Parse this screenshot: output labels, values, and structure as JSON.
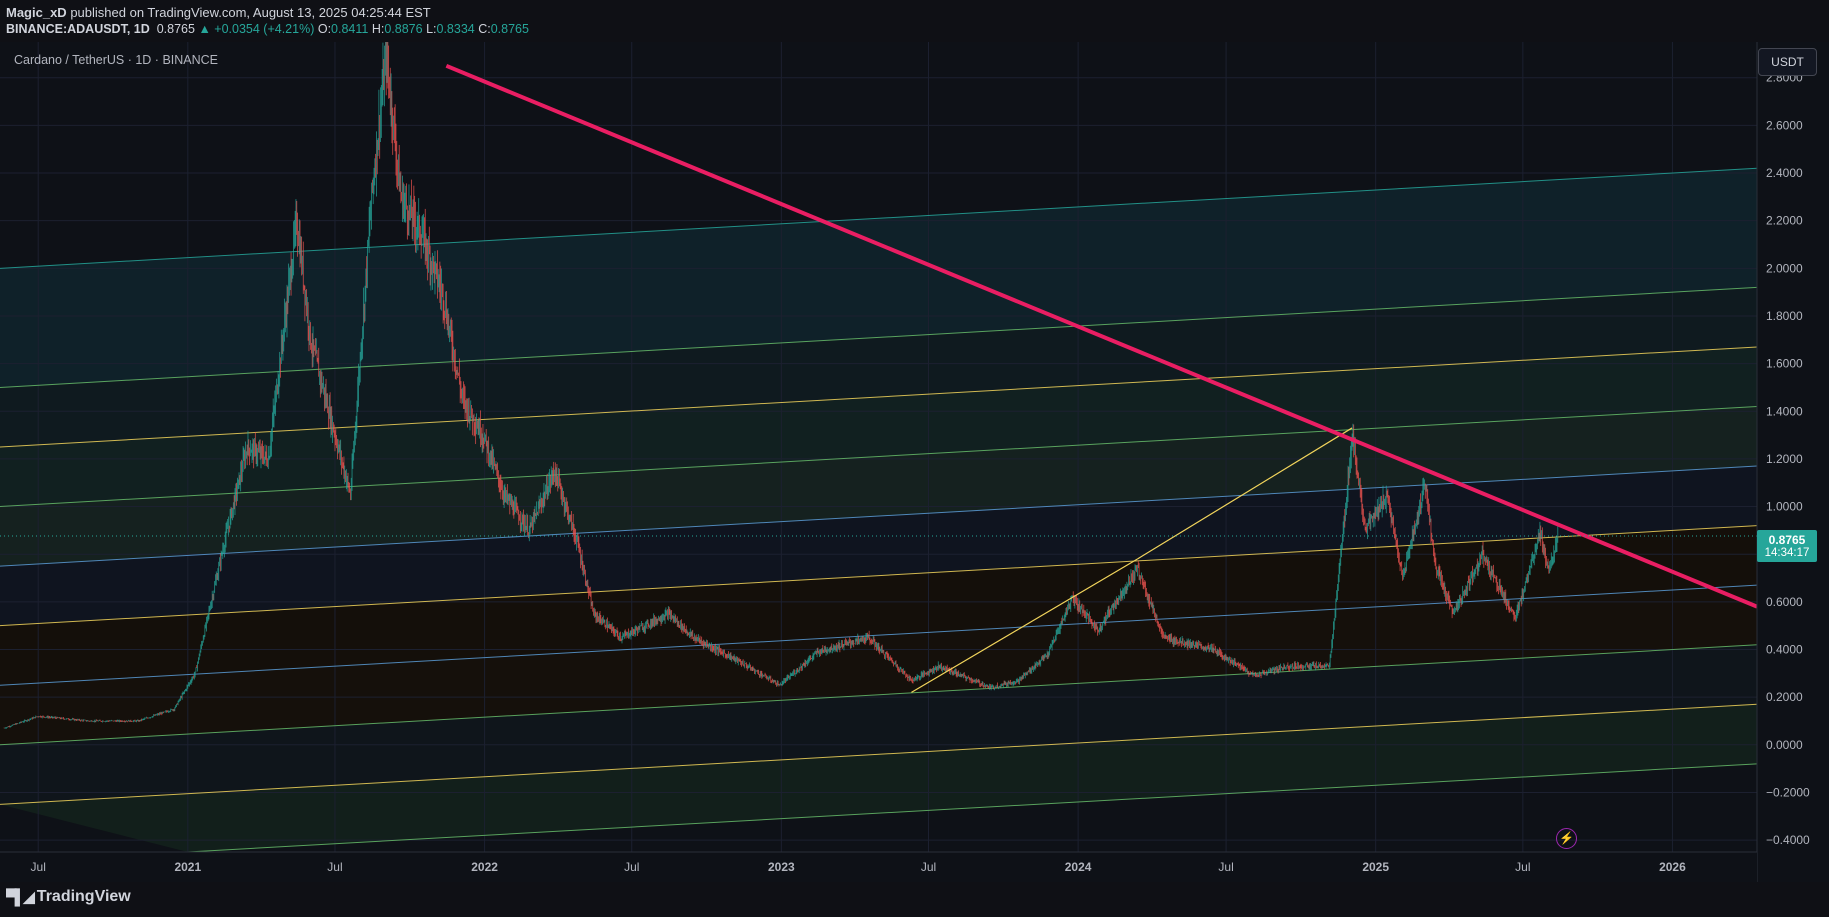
{
  "header": {
    "author": "Magic_xD",
    "published_text": "published on TradingView.com, August 13, 2025 04:25:44 EST",
    "symbol": "BINANCE:ADAUSDT, 1D",
    "last": "0.8765",
    "change": "▲ +0.0354 (+4.21%)",
    "o_label": "O:",
    "o_val": "0.8411",
    "h_label": "H:",
    "h_val": "0.8876",
    "l_label": "L:",
    "l_val": "0.8334",
    "c_label": "C:",
    "c_val": "0.8765"
  },
  "pair_title": "Cardano / TetherUS · 1D · BINANCE",
  "currency": "USDT",
  "price_tag": {
    "price": "0.8765",
    "countdown": "14:34:17"
  },
  "footer": {
    "logo_text": "TradingView"
  },
  "icons": {
    "alert": "lightning-icon",
    "logo": "tradingview-logo-icon"
  },
  "colors": {
    "up": "#26a69a",
    "down": "#ef5350",
    "downtrend": "#e91e63",
    "fib_yellow": "#f2d55c",
    "fib_blue": "#5b9bd5",
    "fib_green": "#66bb6a",
    "fib_teal": "#26a69a"
  },
  "chart_data": {
    "type": "candlestick",
    "x_range": [
      "2020-05-15",
      "2026-04-15"
    ],
    "x_ticks": [
      {
        "date": "2020-07-01",
        "label": "Jul"
      },
      {
        "date": "2021-01-01",
        "label": "2021"
      },
      {
        "date": "2021-07-01",
        "label": "Jul"
      },
      {
        "date": "2022-01-01",
        "label": "2022"
      },
      {
        "date": "2022-07-01",
        "label": "Jul"
      },
      {
        "date": "2023-01-01",
        "label": "2023"
      },
      {
        "date": "2023-07-01",
        "label": "Jul"
      },
      {
        "date": "2024-01-01",
        "label": "2024"
      },
      {
        "date": "2024-07-01",
        "label": "Jul"
      },
      {
        "date": "2025-01-01",
        "label": "2025"
      },
      {
        "date": "2025-07-01",
        "label": "Jul"
      },
      {
        "date": "2026-01-01",
        "label": "2026"
      }
    ],
    "y_range": [
      -0.45,
      2.95
    ],
    "y_ticks": [
      {
        "v": 2.8,
        "label": "2.8000"
      },
      {
        "v": 2.6,
        "label": "2.6000"
      },
      {
        "v": 2.4,
        "label": "2.4000"
      },
      {
        "v": 2.2,
        "label": "2.2000"
      },
      {
        "v": 2.0,
        "label": "2.0000"
      },
      {
        "v": 1.8,
        "label": "1.8000"
      },
      {
        "v": 1.6,
        "label": "1.6000"
      },
      {
        "v": 1.4,
        "label": "1.4000"
      },
      {
        "v": 1.2,
        "label": "1.2000"
      },
      {
        "v": 1.0,
        "label": "1.0000"
      },
      {
        "v": 0.8,
        "label": "0.8000"
      },
      {
        "v": 0.6,
        "label": "0.6000"
      },
      {
        "v": 0.4,
        "label": "0.4000"
      },
      {
        "v": 0.2,
        "label": "0.2000"
      },
      {
        "v": 0.0,
        "label": "0.0000"
      },
      {
        "v": -0.2,
        "label": "−0.2000"
      },
      {
        "v": -0.4,
        "label": "−0.4000"
      }
    ],
    "last_price": 0.8765,
    "price_path": [
      [
        "2020-05-20",
        0.07
      ],
      [
        "2020-07-01",
        0.12
      ],
      [
        "2020-09-01",
        0.1
      ],
      [
        "2020-11-01",
        0.1
      ],
      [
        "2020-12-15",
        0.15
      ],
      [
        "2021-01-10",
        0.3
      ],
      [
        "2021-02-15",
        0.85
      ],
      [
        "2021-03-15",
        1.25
      ],
      [
        "2021-04-10",
        1.2
      ],
      [
        "2021-05-15",
        2.2
      ],
      [
        "2021-06-01",
        1.7
      ],
      [
        "2021-07-01",
        1.3
      ],
      [
        "2021-07-20",
        1.05
      ],
      [
        "2021-08-15",
        2.3
      ],
      [
        "2021-09-02",
        2.9
      ],
      [
        "2021-09-20",
        2.3
      ],
      [
        "2021-10-15",
        2.15
      ],
      [
        "2021-11-10",
        1.9
      ],
      [
        "2021-12-05",
        1.45
      ],
      [
        "2021-12-30",
        1.3
      ],
      [
        "2022-01-25",
        1.05
      ],
      [
        "2022-02-25",
        0.9
      ],
      [
        "2022-03-28",
        1.15
      ],
      [
        "2022-04-25",
        0.85
      ],
      [
        "2022-05-15",
        0.55
      ],
      [
        "2022-06-18",
        0.45
      ],
      [
        "2022-08-15",
        0.55
      ],
      [
        "2022-09-15",
        0.45
      ],
      [
        "2022-11-10",
        0.35
      ],
      [
        "2022-12-30",
        0.25
      ],
      [
        "2023-02-15",
        0.39
      ],
      [
        "2023-04-18",
        0.45
      ],
      [
        "2023-06-10",
        0.27
      ],
      [
        "2023-07-14",
        0.33
      ],
      [
        "2023-09-15",
        0.24
      ],
      [
        "2023-10-20",
        0.27
      ],
      [
        "2023-11-25",
        0.38
      ],
      [
        "2023-12-25",
        0.62
      ],
      [
        "2024-01-25",
        0.48
      ],
      [
        "2024-03-14",
        0.74
      ],
      [
        "2024-04-15",
        0.45
      ],
      [
        "2024-06-15",
        0.4
      ],
      [
        "2024-08-05",
        0.29
      ],
      [
        "2024-09-15",
        0.33
      ],
      [
        "2024-11-05",
        0.33
      ],
      [
        "2024-11-25",
        1.0
      ],
      [
        "2024-12-03",
        1.3
      ],
      [
        "2024-12-20",
        0.9
      ],
      [
        "2025-01-15",
        1.05
      ],
      [
        "2025-02-03",
        0.7
      ],
      [
        "2025-03-03",
        1.1
      ],
      [
        "2025-03-15",
        0.75
      ],
      [
        "2025-04-07",
        0.55
      ],
      [
        "2025-05-12",
        0.8
      ],
      [
        "2025-06-22",
        0.53
      ],
      [
        "2025-07-22",
        0.9
      ],
      [
        "2025-08-02",
        0.72
      ],
      [
        "2025-08-13",
        0.8765
      ]
    ],
    "overlays": {
      "downtrend_line": {
        "from": [
          "2021-11-15",
          2.85
        ],
        "to": [
          "2026-04-15",
          0.58
        ],
        "color": "#e91e63"
      },
      "channel_lines": [
        {
          "from": [
            "2020-05-15",
            2.0
          ],
          "to": [
            "2026-04-15",
            2.42
          ],
          "color": "#26a69a"
        },
        {
          "from": [
            "2020-05-15",
            1.5
          ],
          "to": [
            "2026-04-15",
            1.92
          ],
          "color": "#66bb6a"
        },
        {
          "from": [
            "2020-05-15",
            1.25
          ],
          "to": [
            "2026-04-15",
            1.67
          ],
          "color": "#f2d55c"
        },
        {
          "from": [
            "2020-05-15",
            1.0
          ],
          "to": [
            "2026-04-15",
            1.42
          ],
          "color": "#66bb6a"
        },
        {
          "from": [
            "2020-05-15",
            0.75
          ],
          "to": [
            "2026-04-15",
            1.17
          ],
          "color": "#5b9bd5"
        },
        {
          "from": [
            "2020-05-15",
            0.5
          ],
          "to": [
            "2026-04-15",
            0.92
          ],
          "color": "#f2d55c"
        },
        {
          "from": [
            "2020-05-15",
            0.25
          ],
          "to": [
            "2026-04-15",
            0.67
          ],
          "color": "#5b9bd5"
        },
        {
          "from": [
            "2020-05-15",
            0.0
          ],
          "to": [
            "2026-04-15",
            0.42
          ],
          "color": "#66bb6a"
        },
        {
          "from": [
            "2020-05-15",
            -0.25
          ],
          "to": [
            "2026-04-15",
            0.17
          ],
          "color": "#f2d55c"
        },
        {
          "from": [
            "2021-01-01",
            -0.45
          ],
          "to": [
            "2026-04-15",
            -0.08
          ],
          "color": "#66bb6a"
        }
      ],
      "trend_lines": [
        {
          "from": [
            "2023-06-10",
            0.22
          ],
          "to": [
            "2024-03-14",
            0.78
          ],
          "color": "#f2d55c"
        },
        {
          "from": [
            "2024-03-14",
            0.78
          ],
          "to": [
            "2024-12-03",
            1.33
          ],
          "color": "#f2d55c"
        }
      ]
    }
  }
}
